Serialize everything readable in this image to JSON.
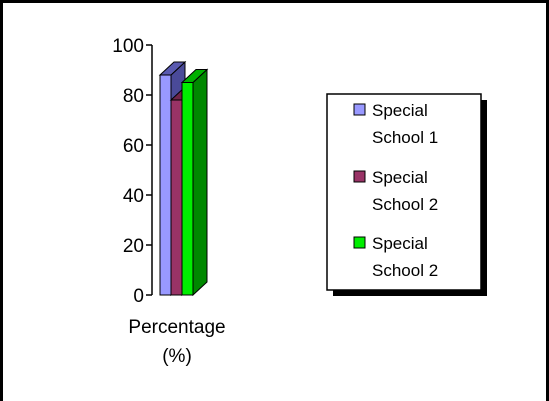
{
  "chart_data": {
    "type": "bar",
    "categories": [
      "Percentage (%)"
    ],
    "xlabel_lines": [
      "Percentage",
      "(%)"
    ],
    "ylim": [
      0,
      100
    ],
    "yticks": [
      "0",
      "20",
      "40",
      "60",
      "80",
      "100"
    ],
    "grid": false,
    "legend_position": "right",
    "series": [
      {
        "name_lines": [
          "Special",
          "School 1"
        ],
        "values": [
          88
        ],
        "color": "#9999ff",
        "top_color": "#5a5ab0",
        "side_color": "#4a4a99"
      },
      {
        "name_lines": [
          "Special",
          "School 2"
        ],
        "values": [
          78
        ],
        "color": "#993366",
        "top_color": "#6e2449",
        "side_color": "#5c1f3d"
      },
      {
        "name_lines": [
          "Special",
          "School 2"
        ],
        "values": [
          85
        ],
        "color": "#00ee00",
        "top_color": "#00b000",
        "side_color": "#008800"
      }
    ]
  }
}
